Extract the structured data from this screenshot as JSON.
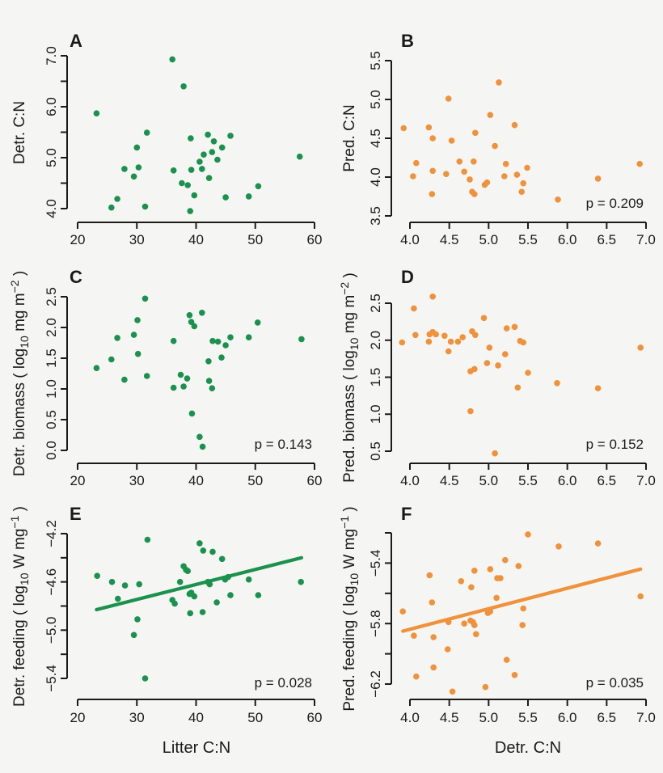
{
  "figure": {
    "background": "#f5f5f3",
    "green": "#1a924d",
    "orange": "#f0923c",
    "axis_color": "#1a1a1a"
  },
  "chart_data": [
    {
      "panel": "A",
      "type": "scatter",
      "color": "#1a924d",
      "ylabel": "Detr. C:N",
      "xlabel": null,
      "p_label": null,
      "x_range": [
        20,
        60
      ],
      "x_ticks": [
        {
          "v": 20,
          "l": "20"
        },
        {
          "v": 30,
          "l": "30"
        },
        {
          "v": 40,
          "l": "40"
        },
        {
          "v": 50,
          "l": "50"
        },
        {
          "v": 60,
          "l": "60"
        }
      ],
      "y_ticks": [
        {
          "v": 4.0,
          "l": "4.0"
        },
        {
          "v": 4.5,
          "l": ""
        },
        {
          "v": 5.0,
          "l": "5.0"
        },
        {
          "v": 5.5,
          "l": ""
        },
        {
          "v": 6.0,
          "l": "6.0"
        },
        {
          "v": 6.5,
          "l": ""
        },
        {
          "v": 7.0,
          "l": "7.0"
        }
      ],
      "fit_line": null,
      "points": [
        [
          23.2,
          5.87
        ],
        [
          25.7,
          4.02
        ],
        [
          26.7,
          4.19
        ],
        [
          27.9,
          4.78
        ],
        [
          29.5,
          4.63
        ],
        [
          30.0,
          5.2
        ],
        [
          30.3,
          4.81
        ],
        [
          31.4,
          4.04
        ],
        [
          31.7,
          5.49
        ],
        [
          36.0,
          6.93
        ],
        [
          36.2,
          4.75
        ],
        [
          37.6,
          4.5
        ],
        [
          37.9,
          6.4
        ],
        [
          38.6,
          4.46
        ],
        [
          39.0,
          3.95
        ],
        [
          39.1,
          5.38
        ],
        [
          39.2,
          4.76
        ],
        [
          39.7,
          4.26
        ],
        [
          40.6,
          4.92
        ],
        [
          41.0,
          4.78
        ],
        [
          41.3,
          5.06
        ],
        [
          42.0,
          5.45
        ],
        [
          42.2,
          4.6
        ],
        [
          42.7,
          5.11
        ],
        [
          43.0,
          5.32
        ],
        [
          43.6,
          4.96
        ],
        [
          44.4,
          5.2
        ],
        [
          45.0,
          4.22
        ],
        [
          45.8,
          5.43
        ],
        [
          48.9,
          4.24
        ],
        [
          50.5,
          4.44
        ],
        [
          57.5,
          5.02
        ]
      ]
    },
    {
      "panel": "B",
      "type": "scatter",
      "color": "#f0923c",
      "ylabel": "Pred. C:N",
      "xlabel": null,
      "p_label": "p = 0.209",
      "x_range": [
        4.0,
        7.0
      ],
      "x_ticks": [
        {
          "v": 4.0,
          "l": "4.0"
        },
        {
          "v": 4.5,
          "l": "4.5"
        },
        {
          "v": 5.0,
          "l": "5.0"
        },
        {
          "v": 5.5,
          "l": "5.5"
        },
        {
          "v": 6.0,
          "l": "6.0"
        },
        {
          "v": 6.5,
          "l": "6.5"
        },
        {
          "v": 7.0,
          "l": "7.0"
        }
      ],
      "y_ticks": [
        {
          "v": 3.5,
          "l": "3.5"
        },
        {
          "v": 4.0,
          "l": "4.0"
        },
        {
          "v": 4.5,
          "l": "4.5"
        },
        {
          "v": 5.0,
          "l": "5.0"
        },
        {
          "v": 5.5,
          "l": "5.5"
        }
      ],
      "fit_line": null,
      "points": [
        [
          3.92,
          4.63
        ],
        [
          4.04,
          4.01
        ],
        [
          4.08,
          4.18
        ],
        [
          4.24,
          4.64
        ],
        [
          4.28,
          3.78
        ],
        [
          4.29,
          4.5
        ],
        [
          4.29,
          4.08
        ],
        [
          4.46,
          4.04
        ],
        [
          4.49,
          5.01
        ],
        [
          4.53,
          4.47
        ],
        [
          4.63,
          4.2
        ],
        [
          4.69,
          4.07
        ],
        [
          4.76,
          3.97
        ],
        [
          4.79,
          3.81
        ],
        [
          4.81,
          4.2
        ],
        [
          4.82,
          3.78
        ],
        [
          4.83,
          4.57
        ],
        [
          4.95,
          3.9
        ],
        [
          4.98,
          3.93
        ],
        [
          5.02,
          4.8
        ],
        [
          5.08,
          4.4
        ],
        [
          5.13,
          5.22
        ],
        [
          5.2,
          4.01
        ],
        [
          5.22,
          4.17
        ],
        [
          5.33,
          4.67
        ],
        [
          5.36,
          4.03
        ],
        [
          5.42,
          3.81
        ],
        [
          5.44,
          3.92
        ],
        [
          5.49,
          4.12
        ],
        [
          5.88,
          3.71
        ],
        [
          6.39,
          3.98
        ],
        [
          6.92,
          4.17
        ]
      ]
    },
    {
      "panel": "C",
      "type": "scatter",
      "color": "#1a924d",
      "ylabel": "Detr. biomass ( log_{10} mg m^{−2} )",
      "xlabel": null,
      "p_label": "p = 0.143",
      "x_range": [
        20,
        60
      ],
      "x_ticks": [
        {
          "v": 20,
          "l": "20"
        },
        {
          "v": 30,
          "l": "30"
        },
        {
          "v": 40,
          "l": "40"
        },
        {
          "v": 50,
          "l": "50"
        },
        {
          "v": 60,
          "l": "60"
        }
      ],
      "y_ticks": [
        {
          "v": 0.0,
          "l": "0.0"
        },
        {
          "v": 0.5,
          "l": "0.5"
        },
        {
          "v": 1.0,
          "l": "1.0"
        },
        {
          "v": 1.5,
          "l": "1.5"
        },
        {
          "v": 2.0,
          "l": "2.0"
        },
        {
          "v": 2.5,
          "l": "2.5"
        }
      ],
      "fit_line": null,
      "points": [
        [
          23.2,
          1.34
        ],
        [
          25.7,
          1.48
        ],
        [
          26.7,
          1.83
        ],
        [
          27.9,
          1.15
        ],
        [
          29.5,
          1.88
        ],
        [
          30.1,
          2.12
        ],
        [
          30.2,
          1.57
        ],
        [
          31.4,
          2.47
        ],
        [
          31.7,
          1.21
        ],
        [
          36.2,
          1.78
        ],
        [
          36.2,
          1.02
        ],
        [
          37.4,
          1.23
        ],
        [
          37.9,
          1.04
        ],
        [
          38.5,
          1.17
        ],
        [
          38.9,
          2.2
        ],
        [
          39.2,
          2.09
        ],
        [
          39.3,
          0.6
        ],
        [
          39.7,
          2.02
        ],
        [
          40.6,
          0.22
        ],
        [
          41.0,
          2.24
        ],
        [
          41.1,
          0.06
        ],
        [
          42.1,
          1.45
        ],
        [
          42.2,
          1.13
        ],
        [
          42.7,
          1.01
        ],
        [
          42.8,
          1.78
        ],
        [
          43.7,
          1.77
        ],
        [
          44.3,
          1.51
        ],
        [
          45.0,
          1.71
        ],
        [
          45.8,
          1.84
        ],
        [
          48.9,
          1.84
        ],
        [
          50.4,
          2.08
        ],
        [
          57.8,
          1.81
        ]
      ]
    },
    {
      "panel": "D",
      "type": "scatter",
      "color": "#f0923c",
      "ylabel": "Pred. biomass ( log_{10} mg m^{−2} )",
      "xlabel": null,
      "p_label": "p = 0.152",
      "x_range": [
        4.0,
        7.0
      ],
      "x_ticks": [
        {
          "v": 4.0,
          "l": "4.0"
        },
        {
          "v": 4.5,
          "l": "4.5"
        },
        {
          "v": 5.0,
          "l": "5.0"
        },
        {
          "v": 5.5,
          "l": "5.5"
        },
        {
          "v": 6.0,
          "l": "6.0"
        },
        {
          "v": 6.5,
          "l": "6.5"
        },
        {
          "v": 7.0,
          "l": "7.0"
        }
      ],
      "y_ticks": [
        {
          "v": 0.5,
          "l": "0.5"
        },
        {
          "v": 1.0,
          "l": "1.0"
        },
        {
          "v": 1.5,
          "l": "1.5"
        },
        {
          "v": 2.0,
          "l": "2.0"
        },
        {
          "v": 2.5,
          "l": "2.5"
        }
      ],
      "fit_line": null,
      "points": [
        [
          3.9,
          1.97
        ],
        [
          4.05,
          2.43
        ],
        [
          4.07,
          2.07
        ],
        [
          4.24,
          1.98
        ],
        [
          4.25,
          2.08
        ],
        [
          4.29,
          2.59
        ],
        [
          4.29,
          2.11
        ],
        [
          4.33,
          2.08
        ],
        [
          4.44,
          2.06
        ],
        [
          4.49,
          1.85
        ],
        [
          4.52,
          1.98
        ],
        [
          4.61,
          1.98
        ],
        [
          4.67,
          2.04
        ],
        [
          4.77,
          1.58
        ],
        [
          4.77,
          1.04
        ],
        [
          4.79,
          2.12
        ],
        [
          4.82,
          1.61
        ],
        [
          4.83,
          2.07
        ],
        [
          4.94,
          2.3
        ],
        [
          4.98,
          1.69
        ],
        [
          5.01,
          1.9
        ],
        [
          5.08,
          0.47
        ],
        [
          5.12,
          1.66
        ],
        [
          5.21,
          1.81
        ],
        [
          5.23,
          2.16
        ],
        [
          5.33,
          2.18
        ],
        [
          5.37,
          1.36
        ],
        [
          5.4,
          1.99
        ],
        [
          5.44,
          1.97
        ],
        [
          5.5,
          1.56
        ],
        [
          5.87,
          1.42
        ],
        [
          6.39,
          1.35
        ],
        [
          6.93,
          1.9
        ]
      ]
    },
    {
      "panel": "E",
      "type": "scatter",
      "color": "#1a924d",
      "ylabel": "Detr. feeding ( log_{10} W  mg^{−1} )",
      "xlabel": "Litter C:N",
      "p_label": "p = 0.028",
      "x_range": [
        20,
        60
      ],
      "x_ticks": [
        {
          "v": 20,
          "l": "20"
        },
        {
          "v": 30,
          "l": "30"
        },
        {
          "v": 40,
          "l": "40"
        },
        {
          "v": 50,
          "l": "50"
        },
        {
          "v": 60,
          "l": "60"
        }
      ],
      "y_ticks": [
        {
          "v": -5.4,
          "l": "−5.4"
        },
        {
          "v": -5.2,
          "l": ""
        },
        {
          "v": -5.0,
          "l": "−5.0"
        },
        {
          "v": -4.8,
          "l": ""
        },
        {
          "v": -4.6,
          "l": "−4.6"
        },
        {
          "v": -4.4,
          "l": ""
        },
        {
          "v": -4.2,
          "l": "−4.2"
        }
      ],
      "fit_line": {
        "x1": 23.2,
        "y1": -4.83,
        "x2": 57.8,
        "y2": -4.4
      },
      "points": [
        [
          23.3,
          -4.55
        ],
        [
          25.8,
          -4.6
        ],
        [
          26.8,
          -4.74
        ],
        [
          28.0,
          -4.63
        ],
        [
          29.5,
          -5.04
        ],
        [
          30.1,
          -4.91
        ],
        [
          30.4,
          -4.62
        ],
        [
          31.4,
          -5.4
        ],
        [
          31.8,
          -4.25
        ],
        [
          36.0,
          -4.75
        ],
        [
          36.4,
          -4.78
        ],
        [
          37.3,
          -4.6
        ],
        [
          37.9,
          -4.47
        ],
        [
          38.3,
          -4.5
        ],
        [
          38.6,
          -4.51
        ],
        [
          38.9,
          -4.7
        ],
        [
          39.0,
          -4.86
        ],
        [
          39.2,
          -4.69
        ],
        [
          39.7,
          -4.72
        ],
        [
          40.6,
          -4.28
        ],
        [
          41.1,
          -4.85
        ],
        [
          41.2,
          -4.34
        ],
        [
          42.0,
          -4.6
        ],
        [
          42.3,
          -4.62
        ],
        [
          42.8,
          -4.35
        ],
        [
          43.5,
          -4.77
        ],
        [
          44.4,
          -4.41
        ],
        [
          44.9,
          -4.58
        ],
        [
          45.4,
          -4.56
        ],
        [
          45.8,
          -4.71
        ],
        [
          48.9,
          -4.58
        ],
        [
          50.5,
          -4.71
        ],
        [
          57.7,
          -4.6
        ]
      ]
    },
    {
      "panel": "F",
      "type": "scatter",
      "color": "#f0923c",
      "ylabel": "Pred. feeding ( log_{10} W  mg^{−1} )",
      "xlabel": "Detr. C:N",
      "p_label": "p = 0.035",
      "x_range": [
        4.0,
        7.0
      ],
      "x_ticks": [
        {
          "v": 4.0,
          "l": "4.0"
        },
        {
          "v": 4.5,
          "l": "4.5"
        },
        {
          "v": 5.0,
          "l": "5.0"
        },
        {
          "v": 5.5,
          "l": "5.5"
        },
        {
          "v": 6.0,
          "l": "6.0"
        },
        {
          "v": 6.5,
          "l": "6.5"
        },
        {
          "v": 7.0,
          "l": "7.0"
        }
      ],
      "y_ticks": [
        {
          "v": -6.2,
          "l": "−6.2"
        },
        {
          "v": -6.0,
          "l": ""
        },
        {
          "v": -5.8,
          "l": "−5.8"
        },
        {
          "v": -5.6,
          "l": ""
        },
        {
          "v": -5.4,
          "l": "−5.4"
        },
        {
          "v": -5.2,
          "l": ""
        }
      ],
      "fit_line": {
        "x1": 3.91,
        "y1": -5.85,
        "x2": 6.93,
        "y2": -5.44
      },
      "points": [
        [
          3.91,
          -5.72
        ],
        [
          4.05,
          -5.88
        ],
        [
          4.08,
          -6.15
        ],
        [
          4.25,
          -5.48
        ],
        [
          4.28,
          -5.66
        ],
        [
          4.3,
          -5.89
        ],
        [
          4.3,
          -6.09
        ],
        [
          4.48,
          -5.97
        ],
        [
          4.49,
          -5.79
        ],
        [
          4.54,
          -6.25
        ],
        [
          4.65,
          -5.52
        ],
        [
          4.69,
          -5.8
        ],
        [
          4.77,
          -5.78
        ],
        [
          4.78,
          -5.56
        ],
        [
          4.8,
          -5.79
        ],
        [
          4.82,
          -5.45
        ],
        [
          4.82,
          -5.81
        ],
        [
          4.84,
          -5.87
        ],
        [
          4.96,
          -6.22
        ],
        [
          4.99,
          -5.73
        ],
        [
          5.02,
          -5.44
        ],
        [
          5.02,
          -5.72
        ],
        [
          5.1,
          -5.63
        ],
        [
          5.11,
          -5.5
        ],
        [
          5.15,
          -5.5
        ],
        [
          5.21,
          -5.38
        ],
        [
          5.23,
          -6.04
        ],
        [
          5.33,
          -6.14
        ],
        [
          5.38,
          -5.42
        ],
        [
          5.43,
          -5.81
        ],
        [
          5.44,
          -5.7
        ],
        [
          5.5,
          -5.21
        ],
        [
          5.89,
          -5.29
        ],
        [
          6.39,
          -5.27
        ],
        [
          6.93,
          -5.62
        ]
      ]
    }
  ]
}
